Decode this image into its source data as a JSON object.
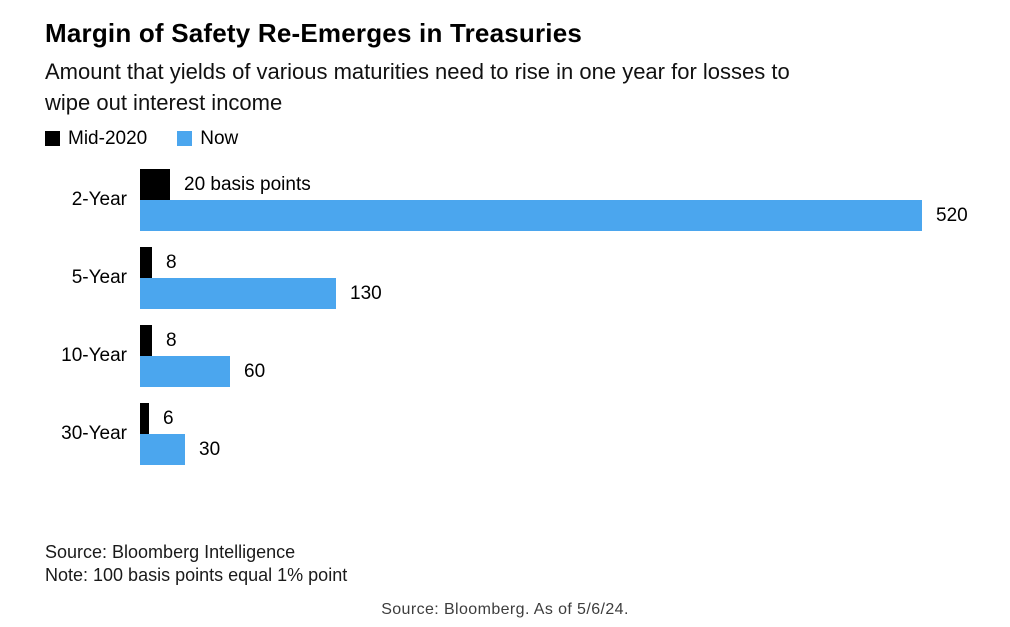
{
  "header": {
    "title": "Margin of Safety Re-Emerges in Treasuries",
    "subtitle_lines": [
      "Amount that yields of various maturities need to rise in one year for losses to",
      "wipe out interest income"
    ]
  },
  "legend": {
    "items": [
      {
        "label": "Mid-2020",
        "color": "#000000"
      },
      {
        "label": "Now",
        "color": "#4BA6EE"
      }
    ]
  },
  "chart_data": {
    "type": "bar",
    "orientation": "horizontal",
    "unit": "basis points",
    "title": "Margin of Safety Re-Emerges in Treasuries",
    "subtitle": "Amount that yields of various maturities need to rise in one year for losses to wipe out interest income",
    "categories": [
      "2-Year",
      "5-Year",
      "10-Year",
      "30-Year"
    ],
    "series": [
      {
        "name": "Mid-2020",
        "color": "#000000",
        "values": [
          20,
          8,
          8,
          6
        ],
        "value_labels": [
          "20 basis points",
          "8",
          "8",
          "6"
        ]
      },
      {
        "name": "Now",
        "color": "#4BA6EE",
        "values": [
          520,
          130,
          60,
          30
        ],
        "value_labels": [
          "520",
          "130",
          "60",
          "30"
        ]
      }
    ],
    "x_min": 0,
    "x_max": 520,
    "grid": false,
    "axis_lines": false,
    "legend_position": "top-left"
  },
  "footer": {
    "source": "Source: Bloomberg Intelligence",
    "note": "Note: 100 basis points equal 1% point"
  },
  "caption": "Source: Bloomberg. As of 5/6/24."
}
